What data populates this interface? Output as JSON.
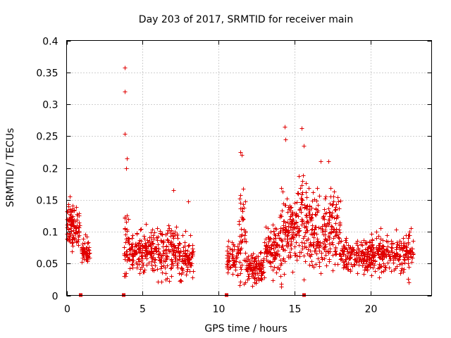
{
  "chart_data": {
    "type": "scatter",
    "title": "Day 203 of 2017, SRMTID for receiver main",
    "xlabel": "GPS time / hours",
    "ylabel": "SRMTID / TECUs",
    "xlim": [
      0,
      24
    ],
    "ylim": [
      0,
      0.4
    ],
    "x_ticks": [
      0,
      5,
      10,
      15,
      20
    ],
    "x_tick_labels": [
      "0",
      "5",
      "10",
      "15",
      "20"
    ],
    "y_ticks": [
      0,
      0.05,
      0.1,
      0.15,
      0.2,
      0.25,
      0.3,
      0.35,
      0.4
    ],
    "y_tick_labels": [
      "0",
      "0.05",
      "0.1",
      "0.15",
      "0.2",
      "0.25",
      "0.3",
      "0.35",
      "0.4"
    ],
    "grid": true,
    "marker": "+",
    "series_color": "#e00000",
    "gap_markers_x": [
      0.9,
      3.75,
      10.5,
      15.6
    ],
    "segments": [
      {
        "x_start": 0.0,
        "x_end": 0.5,
        "y_mean": 0.115,
        "y_spread": 0.025,
        "count": 70
      },
      {
        "x_start": 0.5,
        "x_end": 0.85,
        "y_mean": 0.105,
        "y_spread": 0.02,
        "count": 35
      },
      {
        "x_start": 0.95,
        "x_end": 1.5,
        "y_mean": 0.068,
        "y_spread": 0.016,
        "count": 55
      },
      {
        "x_start": 3.75,
        "x_end": 4.1,
        "y_mean": 0.085,
        "y_spread": 0.035,
        "count": 35
      },
      {
        "x_start": 4.1,
        "x_end": 6.0,
        "y_mean": 0.07,
        "y_spread": 0.022,
        "count": 170
      },
      {
        "x_start": 6.0,
        "x_end": 7.4,
        "y_mean": 0.068,
        "y_spread": 0.028,
        "count": 130
      },
      {
        "x_start": 7.4,
        "x_end": 8.3,
        "y_mean": 0.058,
        "y_spread": 0.022,
        "count": 80
      },
      {
        "x_start": 10.5,
        "x_end": 11.3,
        "y_mean": 0.06,
        "y_spread": 0.02,
        "count": 60
      },
      {
        "x_start": 11.3,
        "x_end": 11.8,
        "y_mean": 0.09,
        "y_spread": 0.05,
        "count": 50
      },
      {
        "x_start": 11.8,
        "x_end": 13.0,
        "y_mean": 0.045,
        "y_spread": 0.015,
        "count": 110
      },
      {
        "x_start": 13.0,
        "x_end": 14.0,
        "y_mean": 0.07,
        "y_spread": 0.03,
        "count": 95
      },
      {
        "x_start": 14.0,
        "x_end": 15.0,
        "y_mean": 0.1,
        "y_spread": 0.045,
        "count": 110
      },
      {
        "x_start": 15.0,
        "x_end": 15.9,
        "y_mean": 0.115,
        "y_spread": 0.05,
        "count": 90
      },
      {
        "x_start": 15.9,
        "x_end": 17.0,
        "y_mean": 0.1,
        "y_spread": 0.04,
        "count": 110
      },
      {
        "x_start": 17.0,
        "x_end": 18.0,
        "y_mean": 0.105,
        "y_spread": 0.04,
        "count": 100
      },
      {
        "x_start": 18.0,
        "x_end": 20.0,
        "y_mean": 0.063,
        "y_spread": 0.02,
        "count": 170
      },
      {
        "x_start": 20.0,
        "x_end": 22.3,
        "y_mean": 0.065,
        "y_spread": 0.02,
        "count": 190
      },
      {
        "x_start": 22.3,
        "x_end": 22.8,
        "y_mean": 0.07,
        "y_spread": 0.025,
        "count": 40
      }
    ],
    "notable_points": [
      {
        "x": 3.8,
        "y": 0.357
      },
      {
        "x": 3.8,
        "y": 0.32
      },
      {
        "x": 3.8,
        "y": 0.254
      },
      {
        "x": 3.95,
        "y": 0.215
      },
      {
        "x": 3.9,
        "y": 0.2
      },
      {
        "x": 11.4,
        "y": 0.225
      },
      {
        "x": 11.5,
        "y": 0.22
      },
      {
        "x": 14.35,
        "y": 0.265
      },
      {
        "x": 14.4,
        "y": 0.245
      },
      {
        "x": 15.45,
        "y": 0.262
      },
      {
        "x": 15.6,
        "y": 0.235
      },
      {
        "x": 17.2,
        "y": 0.21
      },
      {
        "x": 16.7,
        "y": 0.21
      },
      {
        "x": 7.0,
        "y": 0.165
      },
      {
        "x": 8.0,
        "y": 0.148
      },
      {
        "x": 0.2,
        "y": 0.155
      },
      {
        "x": 14.1,
        "y": 0.018
      },
      {
        "x": 12.2,
        "y": 0.015
      },
      {
        "x": 6.0,
        "y": 0.022
      },
      {
        "x": 22.5,
        "y": 0.02
      }
    ]
  }
}
